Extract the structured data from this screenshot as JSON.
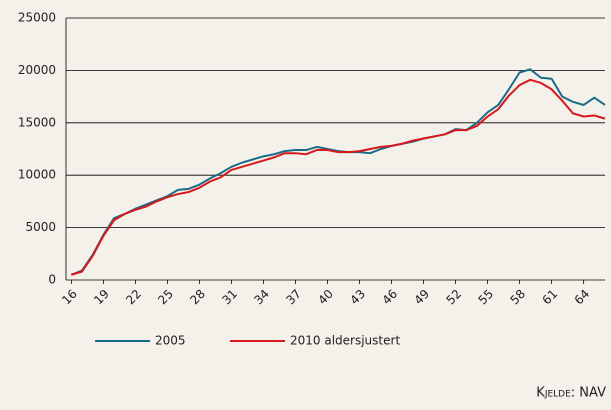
{
  "chart_data": {
    "type": "line",
    "x": [
      16,
      17,
      18,
      19,
      20,
      21,
      22,
      23,
      24,
      25,
      26,
      27,
      28,
      29,
      30,
      31,
      32,
      33,
      34,
      35,
      36,
      37,
      38,
      39,
      40,
      41,
      42,
      43,
      44,
      45,
      46,
      47,
      48,
      49,
      50,
      51,
      52,
      53,
      54,
      55,
      56,
      57,
      58,
      59,
      60,
      61,
      62,
      63,
      64,
      65,
      66
    ],
    "series": [
      {
        "name": "2005",
        "color": "#1c6a8a",
        "values": [
          500,
          900,
          2400,
          4300,
          5900,
          6300,
          6800,
          7200,
          7600,
          8000,
          8600,
          8700,
          9100,
          9700,
          10200,
          10800,
          11200,
          11500,
          11800,
          12000,
          12300,
          12400,
          12400,
          12700,
          12500,
          12300,
          12200,
          12200,
          12100,
          12500,
          12800,
          13000,
          13200,
          13500,
          13700,
          13900,
          14400,
          14300,
          15000,
          16000,
          16700,
          18200,
          19800,
          20100,
          19300,
          19200,
          17500,
          17000,
          16700,
          17400,
          16700
        ]
      },
      {
        "name": "2010 aldersjustert",
        "color": "#d7191c",
        "values": [
          500,
          800,
          2300,
          4200,
          5700,
          6300,
          6700,
          7000,
          7500,
          7900,
          8200,
          8400,
          8800,
          9400,
          9800,
          10500,
          10800,
          11100,
          11400,
          11700,
          12100,
          12100,
          12000,
          12400,
          12400,
          12200,
          12200,
          12300,
          12500,
          12700,
          12800,
          13000,
          13300,
          13500,
          13700,
          13900,
          14300,
          14300,
          14700,
          15600,
          16300,
          17600,
          18600,
          19100,
          18800,
          18200,
          17100,
          15900,
          15600,
          15700,
          15400
        ]
      }
    ],
    "xlim": [
      15.5,
      66
    ],
    "xticks": [
      16,
      19,
      22,
      25,
      28,
      31,
      34,
      37,
      40,
      43,
      46,
      49,
      52,
      55,
      58,
      61,
      64
    ],
    "ylim": [
      0,
      25000
    ],
    "yticks": [
      0,
      5000,
      10000,
      15000,
      20000,
      25000
    ],
    "grid": true,
    "legend": "bottom",
    "source": "Kjelde: NAV"
  }
}
